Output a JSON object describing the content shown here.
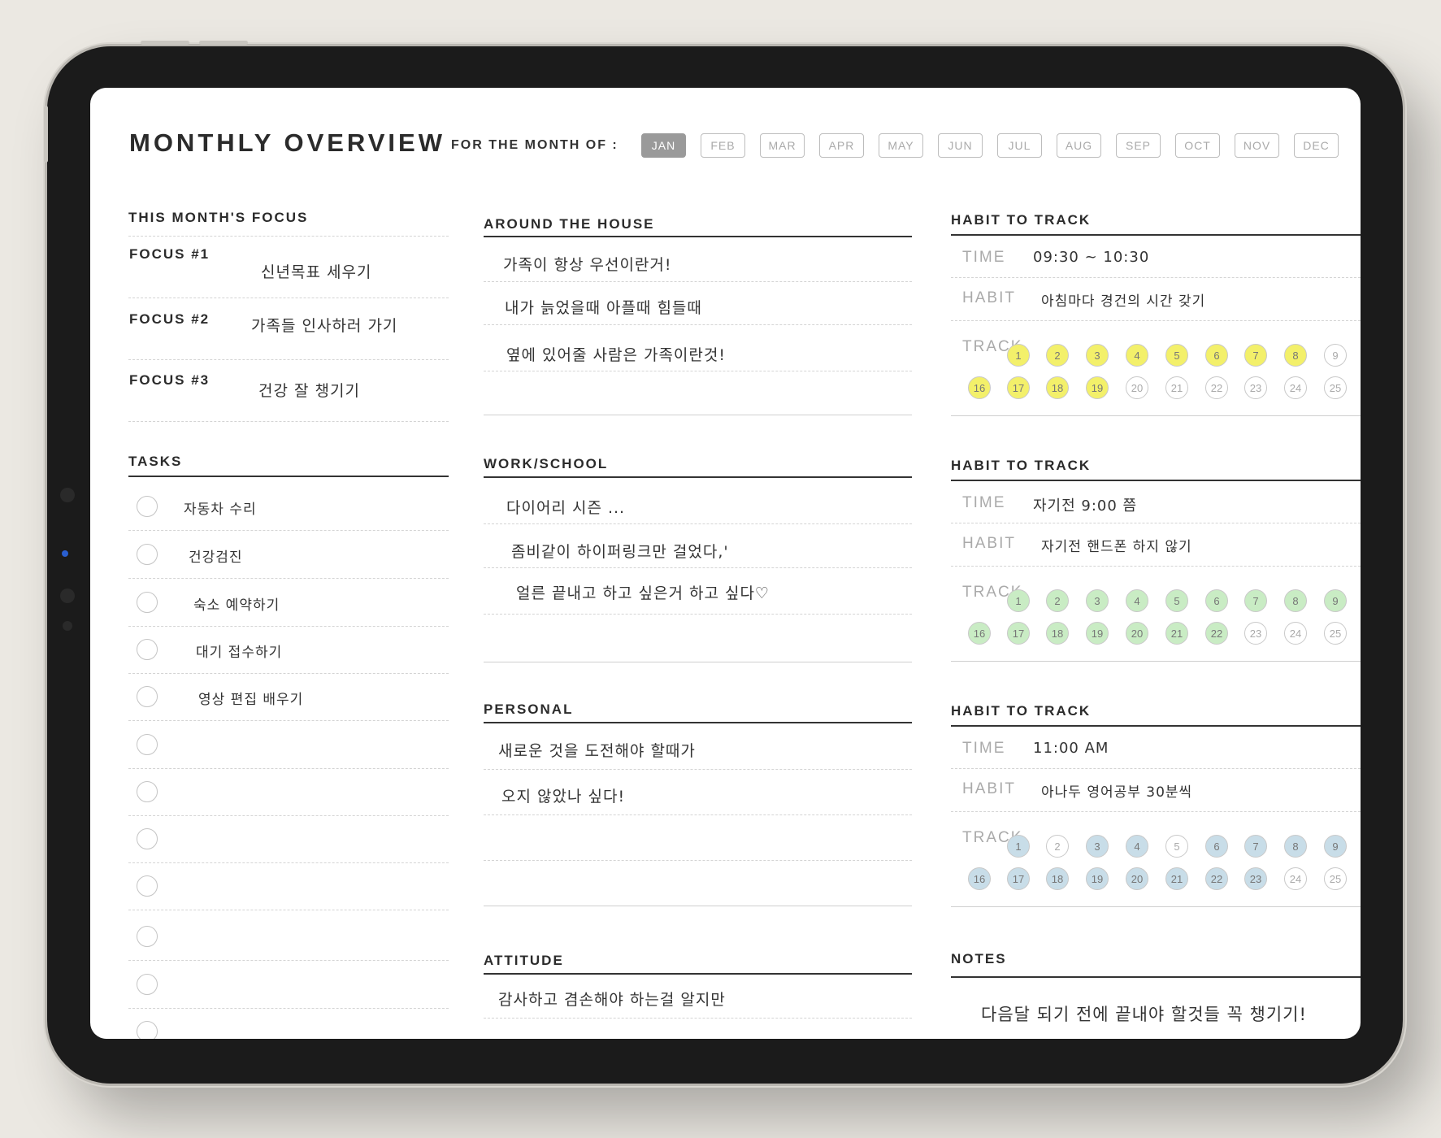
{
  "page": {
    "title": "MONTHLY OVERVIEW",
    "month_prompt": "FOR THE MONTH OF :",
    "months": [
      "JAN",
      "FEB",
      "MAR",
      "APR",
      "MAY",
      "JUN",
      "JUL",
      "AUG",
      "SEP",
      "OCT",
      "NOV",
      "DEC"
    ],
    "selected_month": "JAN"
  },
  "focus": {
    "title": "THIS MONTH'S FOCUS",
    "items": [
      {
        "label": "FOCUS #1",
        "value": "신년목표 세우기"
      },
      {
        "label": "FOCUS #2",
        "value": "가족들 인사하러 가기"
      },
      {
        "label": "FOCUS #3",
        "value": "건강 잘 챙기기"
      }
    ]
  },
  "tasks": {
    "title": "TASKS",
    "items": [
      "자동차 수리",
      "건강검진",
      "숙소 예약하기",
      "대기 접수하기",
      "영상 편집 배우기",
      "",
      "",
      "",
      "",
      "",
      "",
      ""
    ]
  },
  "house": {
    "title": "AROUND THE HOUSE",
    "lines": [
      "가족이 항상 우선이란거!",
      "내가 늙었을때 아플때 힘들때",
      "옆에 있어줄 사람은 가족이란것!"
    ]
  },
  "work": {
    "title": "WORK/SCHOOL",
    "lines": [
      "다이어리 시즌 ...",
      "좀비같이 하이퍼링크만 걸었다,'",
      "얼른 끝내고 하고 싶은거 하고 싶다♡"
    ]
  },
  "personal": {
    "title": "PERSONAL",
    "lines": [
      "새로운 것을 도전해야 할때가",
      "오지 않았나 싶다!"
    ]
  },
  "attitude": {
    "title": "ATTITUDE",
    "lines": [
      "감사하고 겸손해야 하는걸 알지만"
    ]
  },
  "habits": [
    {
      "title": "HABIT TO TRACK",
      "time_label": "TIME",
      "time_value": "09:30 ~ 10:30",
      "habit_label": "HABIT",
      "habit_value": "아침마다 경건의 시간 갖기",
      "track_label": "TRACK",
      "color": "#f3f06a",
      "row1": [
        "1",
        "2",
        "3",
        "4",
        "5",
        "6",
        "7",
        "8",
        "9"
      ],
      "row2": [
        "16",
        "17",
        "18",
        "19",
        "20",
        "21",
        "22",
        "23",
        "24",
        "25"
      ],
      "filled_row1": [
        true,
        true,
        true,
        true,
        true,
        true,
        true,
        true,
        false
      ],
      "filled_row2": [
        true,
        true,
        true,
        true,
        false,
        false,
        false,
        false,
        false,
        false
      ]
    },
    {
      "title": "HABIT TO TRACK",
      "time_label": "TIME",
      "time_value": "자기전 9:00 쯤",
      "habit_label": "HABIT",
      "habit_value": "자기전 핸드폰 하지 않기",
      "track_label": "TRACK",
      "color": "#c9ecc4",
      "row1": [
        "1",
        "2",
        "3",
        "4",
        "5",
        "6",
        "7",
        "8",
        "9"
      ],
      "row2": [
        "16",
        "17",
        "18",
        "19",
        "20",
        "21",
        "22",
        "23",
        "24",
        "25"
      ],
      "filled_row1": [
        true,
        true,
        true,
        true,
        true,
        true,
        true,
        true,
        true
      ],
      "filled_row2": [
        true,
        true,
        true,
        true,
        true,
        true,
        true,
        false,
        false,
        false
      ]
    },
    {
      "title": "HABIT TO TRACK",
      "time_label": "TIME",
      "time_value": "11:00 AM",
      "habit_label": "HABIT",
      "habit_value": "아나두 영어공부 30분씩",
      "track_label": "TRACK",
      "color": "#c8dde8",
      "row1": [
        "1",
        "2",
        "3",
        "4",
        "5",
        "6",
        "7",
        "8",
        "9"
      ],
      "row2": [
        "16",
        "17",
        "18",
        "19",
        "20",
        "21",
        "22",
        "23",
        "24",
        "25"
      ],
      "filled_row1": [
        true,
        false,
        true,
        true,
        false,
        true,
        true,
        true,
        true
      ],
      "filled_row2": [
        true,
        true,
        true,
        true,
        true,
        true,
        true,
        true,
        false,
        false
      ]
    }
  ],
  "notes": {
    "title": "NOTES",
    "lines": [
      "다음달 되기 전에 끝내야 할것들 꼭 챙기기!"
    ]
  }
}
